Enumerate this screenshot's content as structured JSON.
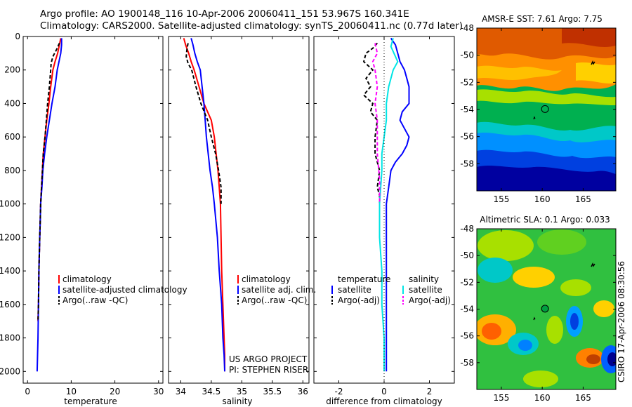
{
  "header": {
    "line1": "Argo profile: AO 1900148_116 10-Apr-2006 20060411_151 53.967S 160.341E",
    "line2": "Climatology: CARS2000. Satellite-adjusted climatology: synTS_20060411.nc (0.77d later)"
  },
  "side_note": "CSIRO 17-Apr-2006 08:30:56",
  "colors": {
    "red": "#ff0000",
    "blue": "#0000ff",
    "black": "#000000",
    "cyan": "#00e5e5",
    "magenta": "#ff00ff"
  },
  "chart_data": [
    {
      "id": "temperature",
      "type": "line",
      "xlabel": "temperature",
      "xlim": [
        -1,
        31
      ],
      "xticks": [
        0,
        10,
        20,
        30
      ],
      "ylim": [
        2070,
        0
      ],
      "yticks": [
        0,
        200,
        400,
        600,
        800,
        1000,
        1200,
        1400,
        1600,
        1800,
        2000
      ],
      "legend": [
        "climatology",
        "satellite-adjusted climatology",
        "Argo(..raw -QC)"
      ],
      "series": [
        {
          "name": "climatology",
          "color": "#ff0000",
          "style": "solid",
          "x": [
            7.6,
            7.3,
            6.9,
            6.3,
            5.8,
            5.3,
            4.9,
            4.4,
            4.0,
            3.6,
            3.4,
            3.2,
            3.0,
            2.9,
            2.8,
            2.6,
            2.5,
            2.4
          ],
          "y": [
            10,
            50,
            100,
            150,
            200,
            300,
            400,
            500,
            600,
            700,
            800,
            900,
            1000,
            1100,
            1200,
            1400,
            1600,
            1700
          ]
        },
        {
          "name": "satellite-adjusted climatology",
          "color": "#0000ff",
          "style": "solid",
          "x": [
            7.8,
            7.8,
            7.6,
            7.2,
            6.8,
            6.3,
            5.6,
            5.0,
            4.4,
            3.9,
            3.5,
            3.3,
            3.0,
            2.9,
            2.8,
            2.6,
            2.5,
            2.4,
            2.3,
            2.2
          ],
          "y": [
            10,
            50,
            100,
            150,
            200,
            300,
            400,
            500,
            600,
            700,
            800,
            900,
            1000,
            1100,
            1200,
            1400,
            1600,
            1800,
            1900,
            2000
          ]
        },
        {
          "name": "Argo(..raw -QC)",
          "color": "#000000",
          "style": "dashed",
          "x": [
            7.3,
            6.6,
            5.8,
            5.4,
            5.3,
            5.0,
            4.6,
            4.3,
            4.0,
            3.6,
            3.4,
            3.2,
            3.0,
            2.9,
            2.8,
            2.6,
            2.5,
            2.4
          ],
          "y": [
            40,
            80,
            120,
            160,
            200,
            300,
            400,
            500,
            600,
            700,
            800,
            900,
            1000,
            1100,
            1200,
            1400,
            1600,
            1700
          ]
        }
      ]
    },
    {
      "id": "salinity",
      "type": "line",
      "xlabel": "salinity",
      "xlim": [
        33.8,
        36.1
      ],
      "xticks": [
        34,
        34.5,
        35,
        35.5,
        36
      ],
      "xtick_labels": [
        "34",
        "34.5",
        "35",
        "35.5",
        "36"
      ],
      "ylim": [
        2070,
        0
      ],
      "legend": [
        "climatology",
        "satellite adj. clim.",
        "Argo(..raw -QC)"
      ],
      "annotation": [
        "US ARGO PROJECT",
        "PI: STEPHEN RISER"
      ],
      "series": [
        {
          "name": "climatology",
          "color": "#ff0000",
          "style": "solid",
          "x": [
            34.05,
            34.08,
            34.13,
            34.17,
            34.22,
            34.3,
            34.38,
            34.5,
            34.55,
            34.58,
            34.61,
            34.63,
            34.65,
            34.66,
            34.67,
            34.69,
            34.71,
            34.72,
            34.72
          ],
          "y": [
            10,
            50,
            100,
            150,
            200,
            300,
            400,
            500,
            600,
            700,
            800,
            900,
            1000,
            1200,
            1400,
            1600,
            1800,
            1900,
            2000
          ]
        },
        {
          "name": "satellite adj. clim.",
          "color": "#0000ff",
          "style": "solid",
          "x": [
            34.17,
            34.2,
            34.23,
            34.27,
            34.32,
            34.35,
            34.38,
            34.4,
            34.42,
            34.45,
            34.48,
            34.52,
            34.55,
            34.6,
            34.63,
            34.67,
            34.69,
            34.71,
            34.72
          ],
          "y": [
            10,
            50,
            100,
            150,
            200,
            300,
            400,
            500,
            600,
            700,
            800,
            900,
            1000,
            1200,
            1400,
            1600,
            1800,
            1900,
            2000
          ]
        },
        {
          "name": "Argo(..raw -QC)",
          "color": "#000000",
          "style": "dashed",
          "x": [
            34.12,
            34.1,
            34.09,
            34.12,
            34.18,
            34.25,
            34.33,
            34.44,
            34.5,
            34.57,
            34.62,
            34.66,
            34.66
          ],
          "y": [
            40,
            80,
            120,
            160,
            200,
            300,
            400,
            500,
            600,
            700,
            800,
            900,
            1000
          ]
        }
      ]
    },
    {
      "id": "difference",
      "type": "line",
      "xlabel": "difference from climatology",
      "xlim": [
        -3.1,
        3.1
      ],
      "xticks": [
        -2,
        0,
        2
      ],
      "ylim": [
        2070,
        0
      ],
      "legend_headers": [
        "temperature",
        "salinity"
      ],
      "legend_left": [
        "satellite",
        "Argo(-adj)"
      ],
      "legend_right": [
        "satellite",
        "Argo(-adj)"
      ],
      "series": [
        {
          "name": "temperature satellite",
          "color": "#0000ff",
          "style": "solid",
          "x": [
            0.3,
            0.5,
            0.6,
            0.7,
            0.9,
            1.0,
            1.1,
            1.1,
            0.8,
            0.7,
            1.1,
            1.0,
            0.8,
            0.5,
            0.3,
            0.2,
            0.1,
            0.1,
            0.1,
            0.1,
            0.1,
            0.1
          ],
          "y": [
            10,
            50,
            100,
            150,
            200,
            250,
            300,
            400,
            450,
            500,
            600,
            650,
            700,
            750,
            800,
            900,
            1000,
            1200,
            1400,
            1600,
            1800,
            2000
          ]
        },
        {
          "name": "temperature Argo(-adj)",
          "color": "#000000",
          "style": "dashed",
          "x": [
            -0.3,
            -0.5,
            -0.8,
            -0.9,
            -0.5,
            -0.8,
            -0.6,
            -0.9,
            -0.5,
            -0.6,
            -0.3,
            -0.4,
            -0.4,
            -0.2,
            -0.3,
            -0.2,
            -0.2
          ],
          "y": [
            40,
            70,
            100,
            150,
            200,
            250,
            300,
            350,
            400,
            450,
            500,
            600,
            700,
            800,
            900,
            950,
            1000
          ]
        },
        {
          "name": "salinity satellite",
          "color": "#00e5e5",
          "style": "solid",
          "x": [
            0.4,
            0.3,
            0.6,
            0.4,
            0.2,
            0.1,
            0.1,
            0.0,
            -0.1,
            -0.1,
            -0.2,
            -0.2,
            -0.1,
            -0.1,
            0.0,
            0.0,
            0.0
          ],
          "y": [
            10,
            60,
            150,
            200,
            300,
            400,
            500,
            600,
            700,
            800,
            1000,
            1200,
            1400,
            1600,
            1800,
            1900,
            2000
          ]
        },
        {
          "name": "salinity Argo(-adj)",
          "color": "#ff00ff",
          "style": "dashed",
          "x": [
            -0.4,
            -0.3,
            -0.5,
            -0.4,
            -0.3,
            -0.4,
            -0.3,
            -0.3,
            -0.3,
            -0.2,
            -0.2
          ],
          "y": [
            40,
            100,
            150,
            200,
            300,
            400,
            500,
            600,
            700,
            850,
            1000
          ]
        }
      ]
    },
    {
      "id": "amsre-sst",
      "type": "heatmap",
      "title": "AMSR-E SST: 7.61 Argo: 7.75",
      "xlim": [
        152,
        169
      ],
      "ylim": [
        -60,
        -48
      ],
      "xticks": [
        155,
        160,
        165
      ],
      "yticks": [
        -48,
        -50,
        -52,
        -54,
        -56,
        -58
      ],
      "marker": {
        "lon": 160.341,
        "lat": -53.967
      }
    },
    {
      "id": "altimetric-sla",
      "type": "heatmap",
      "title": "Altimetric SLA: 0.1 Argo: 0.033",
      "xlim": [
        152,
        169
      ],
      "ylim": [
        -60,
        -48
      ],
      "xticks": [
        155,
        160,
        165
      ],
      "yticks": [
        -48,
        -50,
        -52,
        -54,
        -56,
        -58
      ],
      "marker": {
        "lon": 160.341,
        "lat": -53.967
      }
    }
  ]
}
